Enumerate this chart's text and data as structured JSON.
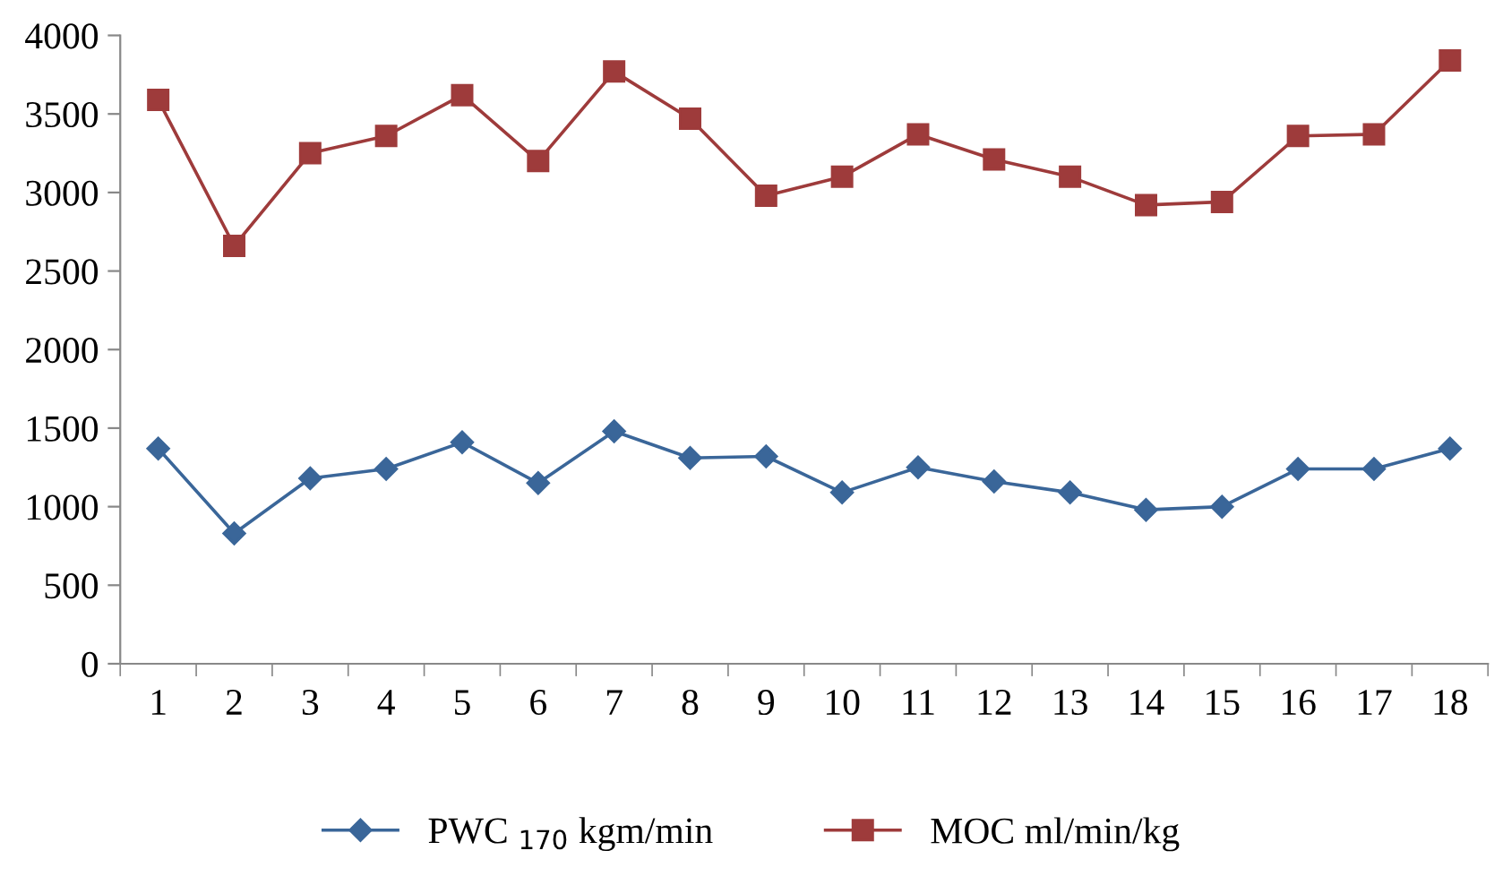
{
  "chart_data": {
    "type": "line",
    "categories": [
      "1",
      "2",
      "3",
      "4",
      "5",
      "6",
      "7",
      "8",
      "9",
      "10",
      "11",
      "12",
      "13",
      "14",
      "15",
      "16",
      "17",
      "18"
    ],
    "series": [
      {
        "name": "PWC $_{170}$ kgm/min",
        "color": "#3a6699",
        "marker": "diamond",
        "values": [
          1370,
          830,
          1180,
          1240,
          1410,
          1150,
          1480,
          1310,
          1320,
          1090,
          1250,
          1160,
          1090,
          980,
          1000,
          1240,
          1240,
          1370
        ]
      },
      {
        "name": "MOC ml/min/kg",
        "color": "#9e3b3b",
        "marker": "square",
        "values": [
          3590,
          2660,
          3250,
          3360,
          3620,
          3200,
          3770,
          3470,
          2980,
          3100,
          3370,
          3210,
          3100,
          2920,
          2940,
          3360,
          3370,
          3840
        ]
      }
    ],
    "ylim": [
      0,
      4000
    ],
    "yticks": [
      0,
      500,
      1000,
      1500,
      2000,
      2500,
      3000,
      3500,
      4000
    ],
    "grid": false,
    "legend": "bottom",
    "line_style": "solid"
  }
}
